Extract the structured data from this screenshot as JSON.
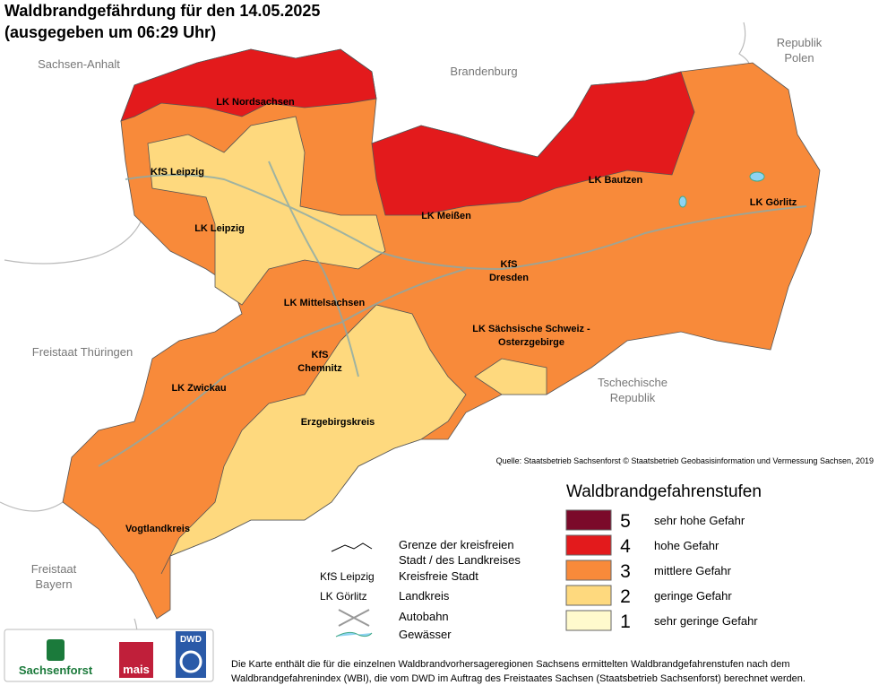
{
  "header": {
    "title": "Waldbrandgefährdung  für den  14.05.2025",
    "subtitle": "(ausgegeben um 06:29 Uhr)"
  },
  "neighbors": [
    {
      "lines": [
        "Sachsen-Anhalt"
      ]
    },
    {
      "lines": [
        "Brandenburg"
      ]
    },
    {
      "lines": [
        "Republik",
        "Polen"
      ]
    },
    {
      "lines": [
        "Freistaat Thüringen"
      ]
    },
    {
      "lines": [
        "Tschechische",
        "Republik"
      ]
    },
    {
      "lines": [
        "Freistaat",
        "Bayern"
      ]
    }
  ],
  "regions": [
    {
      "lines": [
        "LK Nordsachsen"
      ]
    },
    {
      "lines": [
        "KfS Leipzig"
      ]
    },
    {
      "lines": [
        "LK Leipzig"
      ]
    },
    {
      "lines": [
        "LK Meißen"
      ]
    },
    {
      "lines": [
        "LK Bautzen"
      ]
    },
    {
      "lines": [
        "LK Görlitz"
      ]
    },
    {
      "lines": [
        "KfS",
        "Dresden"
      ]
    },
    {
      "lines": [
        "LK Mittelsachsen"
      ]
    },
    {
      "lines": [
        "LK Sächsische Schweiz -",
        "Osterzgebirge"
      ]
    },
    {
      "lines": [
        "KfS",
        "Chemnitz"
      ]
    },
    {
      "lines": [
        "LK Zwickau"
      ]
    },
    {
      "lines": [
        "Erzgebirgskreis"
      ]
    },
    {
      "lines": [
        "Vogtlandkreis"
      ]
    }
  ],
  "zones": [
    3,
    4,
    4,
    2,
    2,
    2
  ],
  "source": "Quelle: Staatsbetrieb Sachsenforst © Staatsbetrieb Geobasisinformation und Vermessung Sachsen, 2019",
  "legend": {
    "title": "Waldbrandgefahrenstufen",
    "items": [
      {
        "level": 5,
        "label": "sehr hohe Gefahr",
        "color": "#7b0a2a"
      },
      {
        "level": 4,
        "label": "hohe Gefahr",
        "color": "#e31a1c"
      },
      {
        "level": 3,
        "label": "mittlere Gefahr",
        "color": "#f88a3a"
      },
      {
        "level": 2,
        "label": "geringe Gefahr",
        "color": "#fed97e"
      },
      {
        "level": 1,
        "label": "sehr geringe Gefahr",
        "color": "#fffacd"
      }
    ]
  },
  "key": {
    "border": [
      "Grenze der kreisfreien",
      "Stadt / des Landkreises"
    ],
    "city_example": "KfS Leipzig",
    "city": "Kreisfreie Stadt",
    "district_example": "LK Görlitz",
    "district": "Landkreis",
    "motorway": "Autobahn",
    "water": "Gewässer"
  },
  "logos": [
    "Sachsenforst",
    "mais",
    "DWD"
  ],
  "footer": [
    "Die Karte enthält die für die einzelnen Waldbrandvorhersageregionen Sachsens ermittelten Waldbrandgefahrenstufen nach dem",
    "Waldbrandgefahrenindex (WBI), die vom DWD im Auftrag des Freistaates Sachsen (Staatsbetrieb Sachsenforst) berechnet werden."
  ]
}
